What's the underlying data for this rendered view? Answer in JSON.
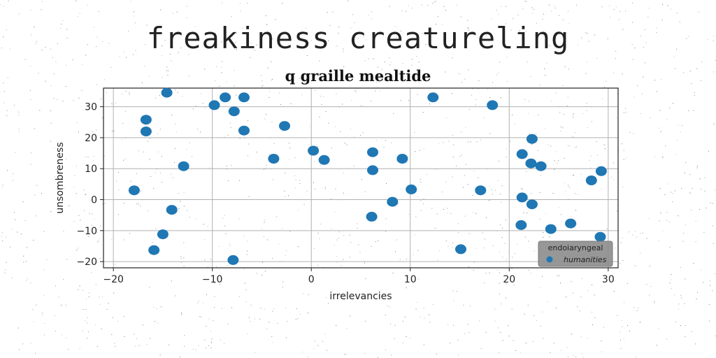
{
  "headline": "freakiness creatureling",
  "chart_data": {
    "type": "scatter",
    "title": "q graille mealtide",
    "xlabel": "irrelevancies",
    "ylabel": "unsombreness",
    "xlim": [
      -21,
      31
    ],
    "ylim": [
      -22,
      36
    ],
    "xticks": [
      -20,
      -10,
      0,
      10,
      20,
      30
    ],
    "yticks": [
      -20,
      -10,
      0,
      10,
      20,
      30
    ],
    "grid": true,
    "legend": {
      "title": "endoiaryngeal",
      "position": "lower-right"
    },
    "series": [
      {
        "name": "humanities",
        "color": "#1f77b4",
        "points": [
          [
            -14.6,
            34.5
          ],
          [
            -8.7,
            33.0
          ],
          [
            -6.8,
            33.0
          ],
          [
            -9.8,
            30.5
          ],
          [
            -7.8,
            28.5
          ],
          [
            -16.7,
            25.8
          ],
          [
            -16.7,
            22.0
          ],
          [
            -6.8,
            22.3
          ],
          [
            -2.7,
            23.8
          ],
          [
            -12.9,
            10.8
          ],
          [
            -3.8,
            13.2
          ],
          [
            0.2,
            15.8
          ],
          [
            1.3,
            12.8
          ],
          [
            6.2,
            15.3
          ],
          [
            6.2,
            9.5
          ],
          [
            9.2,
            13.2
          ],
          [
            -17.9,
            3.0
          ],
          [
            -14.1,
            -3.3
          ],
          [
            -15.0,
            -11.2
          ],
          [
            -15.9,
            -16.3
          ],
          [
            -7.9,
            -19.5
          ],
          [
            8.2,
            -0.7
          ],
          [
            10.1,
            3.3
          ],
          [
            6.1,
            -5.5
          ],
          [
            12.3,
            33.0
          ],
          [
            18.3,
            30.5
          ],
          [
            17.1,
            3.0
          ],
          [
            15.1,
            -16.0
          ],
          [
            22.3,
            19.6
          ],
          [
            21.3,
            14.7
          ],
          [
            22.2,
            11.7
          ],
          [
            23.2,
            10.8
          ],
          [
            28.3,
            6.2
          ],
          [
            29.3,
            9.2
          ],
          [
            21.3,
            0.7
          ],
          [
            22.3,
            -1.5
          ],
          [
            21.2,
            -8.2
          ],
          [
            24.2,
            -9.5
          ],
          [
            26.2,
            -7.7
          ],
          [
            29.2,
            -12.0
          ]
        ]
      }
    ]
  }
}
